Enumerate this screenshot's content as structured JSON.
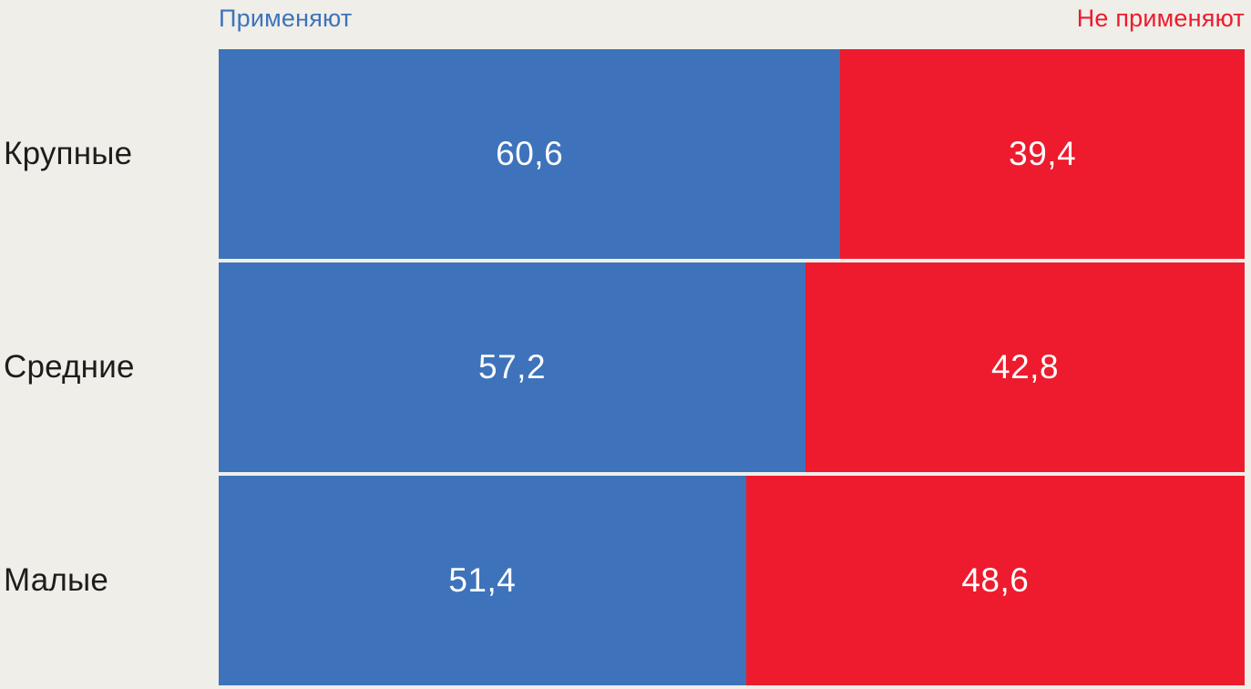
{
  "page": {
    "background_color": "#EFEEE9",
    "text_color": "#1D1D1B"
  },
  "chart_data": {
    "type": "bar",
    "orientation": "horizontal",
    "stacked": true,
    "unit": "percent",
    "xlim": [
      0,
      100
    ],
    "grid": false,
    "legend_position": "top",
    "categories": [
      "Крупные",
      "Средние",
      "Малые"
    ],
    "series": [
      {
        "name": "Применяют",
        "color": "#3E73BB",
        "values": [
          60.6,
          57.2,
          51.4
        ]
      },
      {
        "name": "Не применяют",
        "color": "#ED1B2D",
        "values": [
          39.4,
          42.8,
          48.6
        ]
      }
    ],
    "value_labels": {
      "visible": true,
      "color": "#FFFFFF",
      "decimal_separator": ","
    }
  }
}
